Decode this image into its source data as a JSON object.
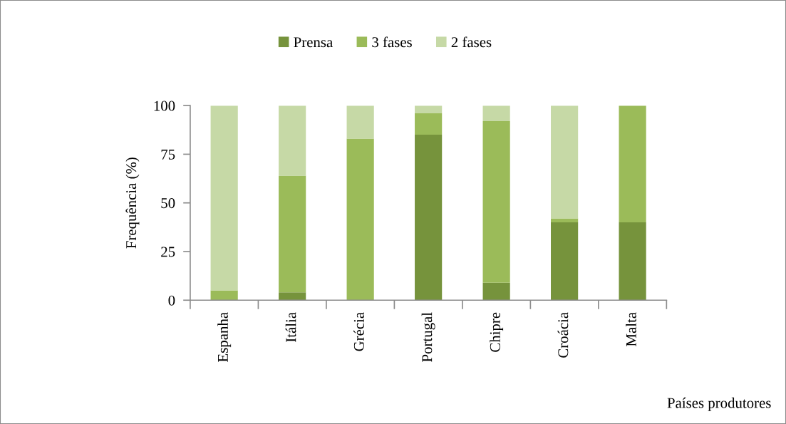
{
  "chart_data": {
    "type": "bar",
    "stacked": true,
    "categories": [
      "Espanha",
      "Itália",
      "Grécia",
      "Portugal",
      "Chipre",
      "Croácia",
      "Malta"
    ],
    "series": [
      {
        "name": "Prensa",
        "color": "#76933c",
        "values": [
          0,
          4,
          0,
          85,
          9,
          40,
          40
        ]
      },
      {
        "name": "3 fases",
        "color": "#9bbb59",
        "values": [
          5,
          60,
          83,
          11,
          83,
          2,
          60
        ]
      },
      {
        "name": "2 fases",
        "color": "#c6d9a6",
        "values": [
          95,
          36,
          17,
          4,
          8,
          58,
          0
        ]
      }
    ],
    "ylabel": "Frequência (%)",
    "xlabel": "Países produtores",
    "ylim": [
      0,
      100
    ],
    "yticks": [
      0,
      25,
      50,
      75,
      100
    ],
    "grid": false,
    "legend": "top"
  }
}
